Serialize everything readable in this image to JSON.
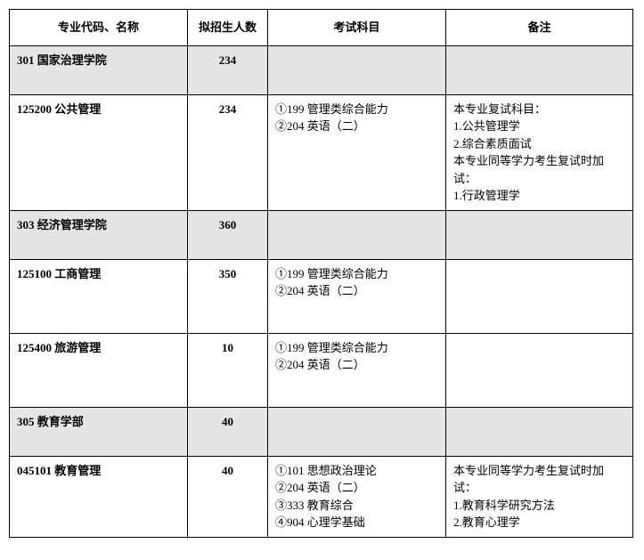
{
  "headers": {
    "name": "专业代码、名称",
    "count": "拟招生人数",
    "subjects": "考试科目",
    "notes": "备注"
  },
  "columns": {
    "name_width": 200,
    "count_width": 90,
    "subj_width": 200,
    "note_width": 210
  },
  "colors": {
    "dept_bg": "#e5e5e5",
    "border": "#000000",
    "background": "#ffffff"
  },
  "font": {
    "family": "SimSun",
    "size_pt": 10
  },
  "rows": [
    {
      "type": "dept",
      "name": "301 国家治理学院",
      "count": "234",
      "subjects": [],
      "notes": []
    },
    {
      "type": "major",
      "name": "125200 公共管理",
      "count": "234",
      "subjects": [
        "①199 管理类综合能力",
        "②204 英语（二）"
      ],
      "notes": [
        "本专业复试科目：",
        "1.公共管理学",
        "2.综合素质面试",
        "本专业同等学力考生复试时加试：",
        "1.行政管理学"
      ]
    },
    {
      "type": "dept",
      "name": "303 经济管理学院",
      "count": "360",
      "subjects": [],
      "notes": []
    },
    {
      "type": "major",
      "name": "125100 工商管理",
      "count": "350",
      "subjects": [
        "①199 管理类综合能力",
        "②204 英语（二）"
      ],
      "notes": []
    },
    {
      "type": "major",
      "name": "125400 旅游管理",
      "count": "10",
      "subjects": [
        "①199 管理类综合能力",
        "②204 英语（二）"
      ],
      "notes": []
    },
    {
      "type": "dept",
      "name": "305 教育学部",
      "count": "40",
      "subjects": [],
      "notes": []
    },
    {
      "type": "major",
      "name": "045101 教育管理",
      "count": "40",
      "subjects": [
        "①101 思想政治理论",
        "②204 英语（二）",
        "③333 教育综合",
        "④904 心理学基础"
      ],
      "notes": [
        "本专业同等学力考生复试时加试：",
        "1.教育科学研究方法",
        "2.教育心理学"
      ]
    }
  ]
}
